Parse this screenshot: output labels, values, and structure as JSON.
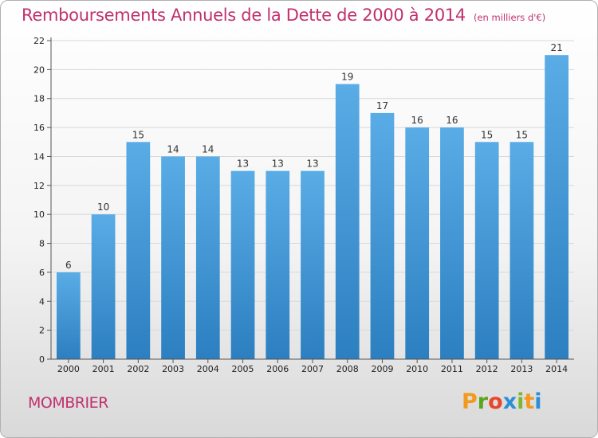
{
  "header": {
    "title": "Remboursements Annuels de la Dette de 2000 à 2014",
    "subtitle": "(en milliers d'€)"
  },
  "footer": {
    "commune": "MOMBRIER",
    "logo_letters": [
      "P",
      "r",
      "o",
      "x",
      "i",
      "t",
      "i"
    ],
    "logo_colors": [
      "#f29a1f",
      "#5aa51c",
      "#e8462a",
      "#2c8fd6",
      "#7cb82f",
      "#f29a1f",
      "#2c8fd6"
    ]
  },
  "colors": {
    "title": "#c0306e",
    "bar_top": "#5aace6",
    "bar_bottom": "#2c7fc0",
    "grid": "#d8d8d8"
  },
  "chart_data": {
    "type": "bar",
    "title": "Remboursements Annuels de la Dette de 2000 à 2014",
    "subtitle": "(en milliers d'€)",
    "categories": [
      "2000",
      "2001",
      "2002",
      "2003",
      "2004",
      "2005",
      "2006",
      "2007",
      "2008",
      "2009",
      "2010",
      "2011",
      "2012",
      "2013",
      "2014"
    ],
    "values": [
      6,
      10,
      15,
      14,
      14,
      13,
      13,
      13,
      19,
      17,
      16,
      16,
      15,
      15,
      21
    ],
    "xlabel": "",
    "ylabel": "",
    "ylim": [
      0,
      22
    ],
    "yticks": [
      0,
      2,
      4,
      6,
      8,
      10,
      12,
      14,
      16,
      18,
      20,
      22
    ],
    "grid": true,
    "legend": "none"
  }
}
